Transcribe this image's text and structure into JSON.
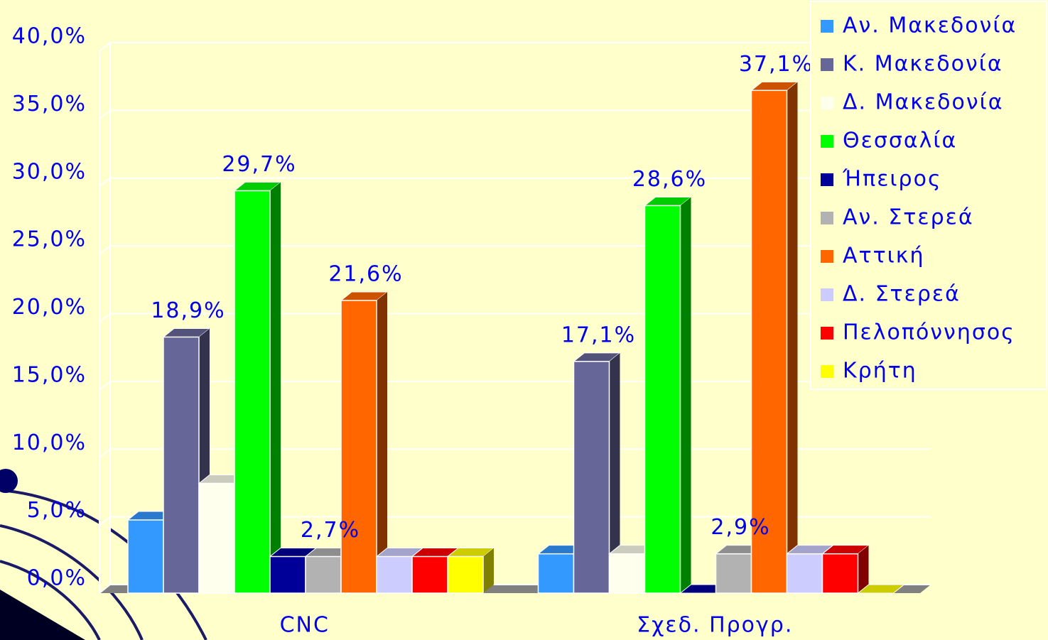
{
  "chart_data": {
    "type": "bar3d",
    "categories": [
      "CNC",
      "Σχεδ. Προγρ."
    ],
    "series": [
      {
        "name": "Αν. Μακεδονία",
        "color": "#3399ff",
        "values": [
          5.4,
          2.9
        ]
      },
      {
        "name": "Κ. Μακεδονία",
        "color": "#666699",
        "values": [
          18.9,
          17.1
        ],
        "value_labels": [
          "18,9%",
          "17,1%"
        ]
      },
      {
        "name": "Δ. Μακεδονία",
        "color": "#ffffee",
        "values": [
          8.1,
          2.9
        ]
      },
      {
        "name": "Θεσσαλία",
        "color": "#00ff00",
        "values": [
          29.7,
          28.6
        ],
        "value_labels": [
          "29,7%",
          "28,6%"
        ]
      },
      {
        "name": "Ήπειρος",
        "color": "#000099",
        "values": [
          2.7,
          0
        ]
      },
      {
        "name": "Αν. Στερεά",
        "color": "#b2b2b2",
        "values": [
          2.7,
          2.9
        ],
        "value_labels": [
          "2,7%",
          "2,9%"
        ]
      },
      {
        "name": "Αττική",
        "color": "#ff6600",
        "values": [
          21.6,
          37.1
        ],
        "value_labels": [
          "21,6%",
          "37,1%"
        ]
      },
      {
        "name": "Δ. Στερεά",
        "color": "#ccccff",
        "values": [
          2.7,
          2.9
        ]
      },
      {
        "name": "Πελοπόννησος",
        "color": "#ff0000",
        "values": [
          2.7,
          2.9
        ]
      },
      {
        "name": "Κρήτη",
        "color": "#ffff00",
        "values": [
          2.7,
          0
        ]
      }
    ],
    "ylim": [
      0,
      40
    ],
    "yticks": [
      {
        "value": 0,
        "label": "0,0%"
      },
      {
        "value": 5,
        "label": "5,0%"
      },
      {
        "value": 10,
        "label": "10,0%"
      },
      {
        "value": 15,
        "label": "15,0%"
      },
      {
        "value": 20,
        "label": "20,0%"
      },
      {
        "value": 25,
        "label": "25,0%"
      },
      {
        "value": 30,
        "label": "30,0%"
      },
      {
        "value": 35,
        "label": "35,0%"
      },
      {
        "value": 40,
        "label": "40,0%"
      }
    ],
    "grid": true,
    "legend": "upper right"
  }
}
